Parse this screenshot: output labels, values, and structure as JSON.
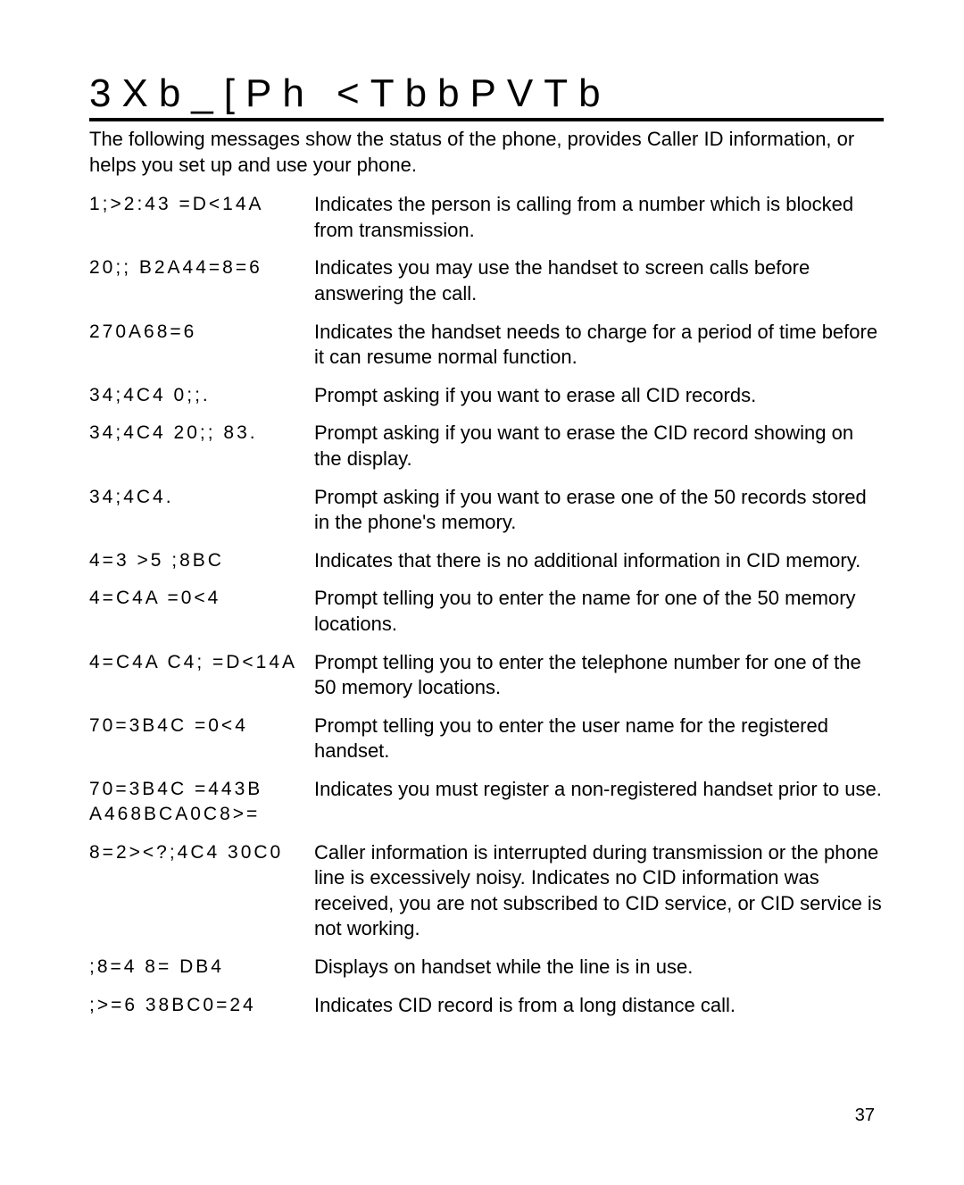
{
  "title": "3Xb_[Ph <TbbPVTb",
  "intro": "The following messages show the status of the phone, provides Caller ID information, or helps you set up and use your phone.",
  "rows": [
    {
      "code": "1;>2:43 =D<14A",
      "desc": "Indicates the person is calling from a number which is blocked from transmission."
    },
    {
      "code": "20;; B2A44=8=6",
      "desc": "Indicates you may use the handset to screen calls before answering the call."
    },
    {
      "code": "270A68=6",
      "desc": "Indicates the handset needs to charge for a period of time before it can resume normal function."
    },
    {
      "code": "34;4C4 0;;.",
      "desc": "Prompt asking if you want to erase all CID records."
    },
    {
      "code": "34;4C4 20;; 83.",
      "desc": "Prompt asking if you want to erase the CID record showing on the display."
    },
    {
      "code": "34;4C4.",
      "desc": "Prompt asking if you want to erase one of the 50 records stored in the phone's memory."
    },
    {
      "code": "4=3 >5 ;8BC",
      "desc": "Indicates that there is no additional information in CID memory."
    },
    {
      "code": "4=C4A =0<4",
      "desc": "Prompt telling you to enter the name for one of the 50 memory locations."
    },
    {
      "code": "4=C4A C4; =D<14A",
      "desc": "Prompt telling you to enter the telephone number for one of the 50 memory locations."
    },
    {
      "code": "70=3B4C =0<4",
      "desc": "Prompt telling you to enter the user name for the registered handset."
    },
    {
      "code": "70=3B4C =443B A468BCA0C8>=",
      "desc": "Indicates you must register a non-registered handset prior to use."
    },
    {
      "code": "8=2><?;4C4 30C0",
      "desc": "Caller information is interrupted during transmission or the phone line is excessively noisy. Indicates no CID information was received, you are not subscribed to CID service, or CID service is not working."
    },
    {
      "code": ";8=4 8= DB4",
      "desc": "Displays on handset while the line is in use."
    },
    {
      "code": ";>=6 38BC0=24",
      "desc": "Indicates CID record is from a long distance call."
    }
  ],
  "page_number": "37"
}
